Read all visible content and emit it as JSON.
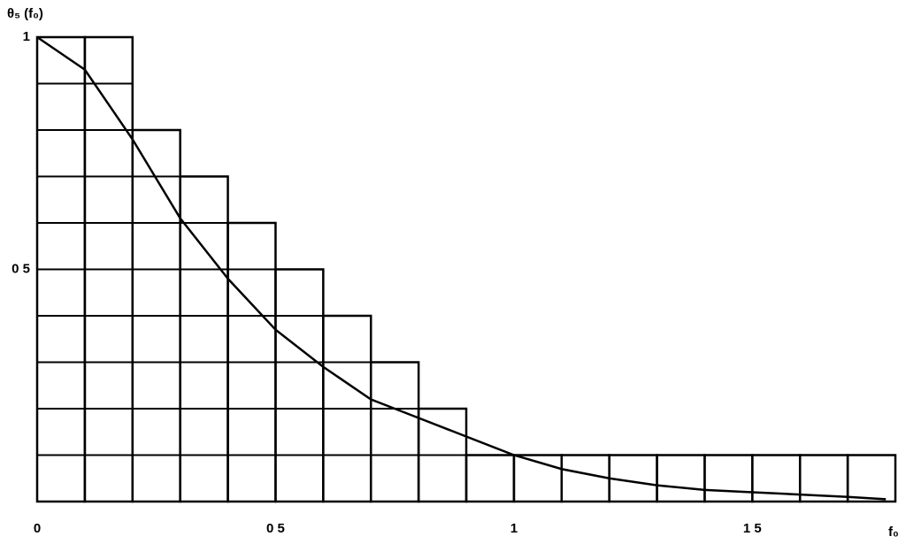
{
  "chart_data": {
    "type": "histogram",
    "y_label": "θ₅ (f₀)",
    "x_label": "f₀",
    "bins": [
      0,
      0.1,
      0.2,
      0.3,
      0.4,
      0.5,
      0.6,
      0.7,
      0.8,
      0.9,
      1.0,
      1.1,
      1.2,
      1.3,
      1.4,
      1.5,
      1.6,
      1.7,
      1.8
    ],
    "values": [
      1,
      1,
      0.8,
      0.7,
      0.6,
      0.5,
      0.4,
      0.3,
      0.2,
      0.1,
      0.1,
      0.1,
      0.1,
      0.1,
      0.1,
      0.1,
      0.1,
      0.1
    ],
    "color": "#000000",
    "line": {
      "x": [
        0,
        0.1,
        0.2,
        0.3,
        0.4,
        0.5,
        0.6,
        0.7,
        0.8,
        0.9,
        1.0,
        1.1,
        1.2,
        1.3,
        1.4,
        1.5,
        1.6,
        1.7,
        1.78
      ],
      "values": [
        1,
        0.93,
        0.78,
        0.61,
        0.48,
        0.37,
        0.29,
        0.22,
        0.18,
        0.14,
        0.1,
        0.07,
        0.05,
        0.035,
        0.025,
        0.02,
        0.015,
        0.01,
        0.005
      ]
    },
    "xlim": [
      0,
      1.8
    ],
    "ylim": [
      0,
      1
    ],
    "xticks": [
      0,
      {
        "value": 0.5,
        "label": "0 5"
      },
      1,
      {
        "value": 1.5,
        "label": "1 5"
      }
    ],
    "yticks": [
      0.1,
      0.2,
      0.3,
      0.4,
      {
        "value": 0.5,
        "label": "0 5"
      },
      0.6,
      0.7,
      0.8,
      0.9,
      1
    ],
    "labeled_yticks": [
      4,
      9
    ]
  }
}
